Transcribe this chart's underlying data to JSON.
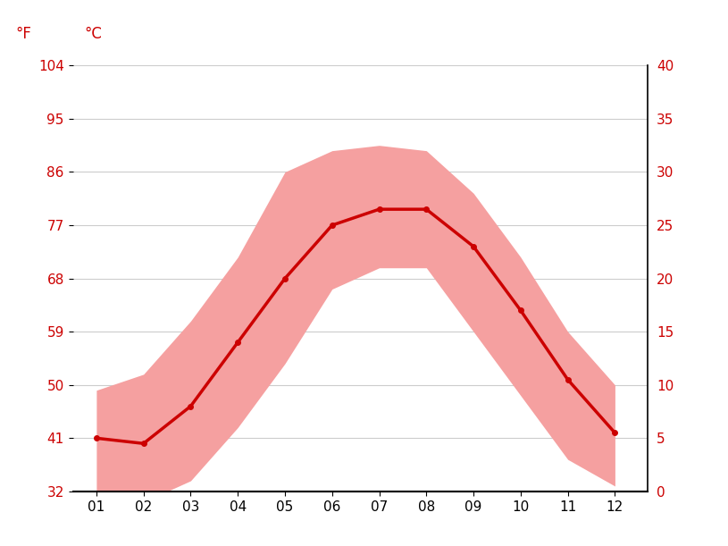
{
  "months": [
    1,
    2,
    3,
    4,
    5,
    6,
    7,
    8,
    9,
    10,
    11,
    12
  ],
  "month_labels": [
    "01",
    "02",
    "03",
    "04",
    "05",
    "06",
    "07",
    "08",
    "09",
    "10",
    "11",
    "12"
  ],
  "mean_c": [
    5.0,
    4.5,
    8.0,
    14.0,
    20.0,
    25.0,
    26.5,
    26.5,
    23.0,
    17.0,
    10.5,
    5.5
  ],
  "max_c": [
    9.5,
    11.0,
    16.0,
    22.0,
    30.0,
    32.0,
    32.5,
    32.0,
    28.0,
    22.0,
    15.0,
    10.0
  ],
  "min_c": [
    0.0,
    -1.0,
    1.0,
    6.0,
    12.0,
    19.0,
    21.0,
    21.0,
    15.0,
    9.0,
    3.0,
    0.5
  ],
  "mean_color": "#cc0000",
  "band_color": "#f5a0a0",
  "line_width": 2.5,
  "marker": "o",
  "marker_size": 4,
  "ylim_c": [
    0,
    40
  ],
  "yticks_c": [
    0,
    5,
    10,
    15,
    20,
    25,
    30,
    35,
    40
  ],
  "yticks_f": [
    32,
    41,
    50,
    59,
    68,
    77,
    86,
    95,
    104
  ],
  "ylabel_c": "°C",
  "ylabel_f": "°F",
  "grid_color": "#cccccc",
  "bg_color": "#ffffff"
}
